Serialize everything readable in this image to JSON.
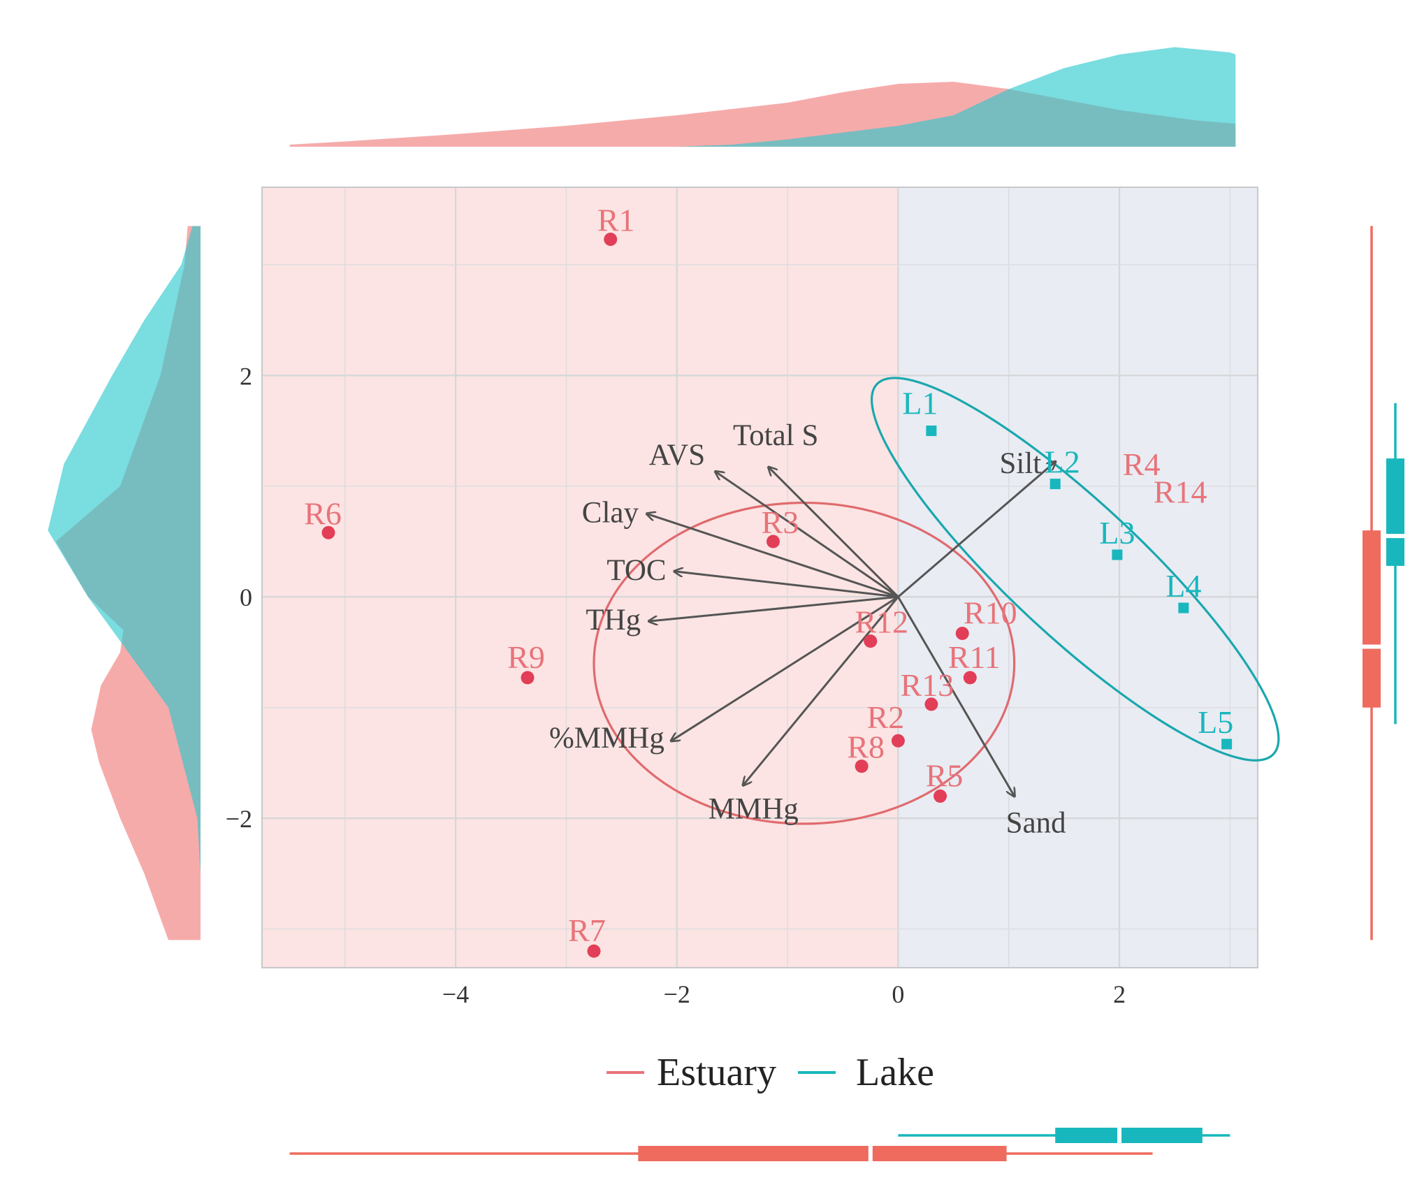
{
  "chart_data": {
    "type": "scatter",
    "title": "",
    "xlabel": "",
    "ylabel": "",
    "xlim": [
      -5.75,
      3.25
    ],
    "ylim": [
      -3.35,
      3.7
    ],
    "x_ticks": [
      {
        "value": -4,
        "label": "−4"
      },
      {
        "value": -2,
        "label": "−2"
      },
      {
        "value": 0,
        "label": "0"
      },
      {
        "value": 2,
        "label": "2"
      }
    ],
    "y_ticks": [
      {
        "value": 2,
        "label": "2"
      },
      {
        "value": 0,
        "label": "0"
      },
      {
        "value": -2,
        "label": "−2"
      }
    ],
    "grid": true,
    "legend_position": "bottom",
    "legend": [
      {
        "name": "Estuary",
        "color": "#E8737A"
      },
      {
        "name": "Lake",
        "color": "#17B7BD"
      }
    ],
    "series": [
      {
        "name": "Estuary",
        "color": "#E23E57",
        "label_color": "#E8737A",
        "marker": "circle",
        "points": [
          {
            "label": "R1",
            "x": -2.6,
            "y": 3.23
          },
          {
            "label": "R2",
            "x": 0.0,
            "y": -1.3
          },
          {
            "label": "R3",
            "x": -1.13,
            "y": 0.5
          },
          {
            "label": "R4",
            "x": 2.2,
            "y": 1.1,
            "label_only": true
          },
          {
            "label": "R5",
            "x": 0.38,
            "y": -1.8
          },
          {
            "label": "R6",
            "x": -5.15,
            "y": 0.58
          },
          {
            "label": "R7",
            "x": -2.75,
            "y": -3.2
          },
          {
            "label": "R8",
            "x": -0.33,
            "y": -1.53
          },
          {
            "label": "R9",
            "x": -3.35,
            "y": -0.73
          },
          {
            "label": "R10",
            "x": 0.58,
            "y": -0.33
          },
          {
            "label": "R11",
            "x": 0.65,
            "y": -0.73
          },
          {
            "label": "R12",
            "x": -0.25,
            "y": -0.4
          },
          {
            "label": "R13",
            "x": 0.3,
            "y": -0.97
          },
          {
            "label": "R14",
            "x": 2.55,
            "y": 0.85,
            "label_only": true
          }
        ]
      },
      {
        "name": "Lake",
        "color": "#17B7BD",
        "label_color": "#17B7BD",
        "marker": "square",
        "points": [
          {
            "label": "L1",
            "x": 0.3,
            "y": 1.5
          },
          {
            "label": "L2",
            "x": 1.42,
            "y": 1.02
          },
          {
            "label": "L3",
            "x": 1.98,
            "y": 0.38
          },
          {
            "label": "L4",
            "x": 2.58,
            "y": -0.1
          },
          {
            "label": "L5",
            "x": 2.97,
            "y": -1.33
          }
        ]
      }
    ],
    "loadings": [
      {
        "name": "Total S",
        "x": -1.17,
        "y": 1.17
      },
      {
        "name": "AVS",
        "x": -1.65,
        "y": 1.13
      },
      {
        "name": "Clay",
        "x": -2.27,
        "y": 0.75
      },
      {
        "name": "TOC",
        "x": -2.02,
        "y": 0.23
      },
      {
        "name": "THg",
        "x": -2.25,
        "y": -0.22
      },
      {
        "name": "%MMHg",
        "x": -2.05,
        "y": -1.3
      },
      {
        "name": "MMHg",
        "x": -1.4,
        "y": -1.7
      },
      {
        "name": "Silt",
        "x": 1.42,
        "y": 1.22
      },
      {
        "name": "Sand",
        "x": 1.05,
        "y": -1.8
      }
    ],
    "ellipses": [
      {
        "group": "Estuary",
        "cx": -0.85,
        "cy": -0.6,
        "rx": 1.9,
        "ry": 1.45,
        "angle_deg": 0
      },
      {
        "group": "Lake",
        "cx": 1.6,
        "cy": 0.25,
        "rx": 2.45,
        "ry": 0.6,
        "angle_deg": -43
      }
    ],
    "background_regions": [
      {
        "from_x": -5.75,
        "to_x": 0,
        "color": "#FBE4E3"
      },
      {
        "from_x": 0,
        "to_x": 3.25,
        "color": "#E9ECF3"
      }
    ],
    "marginal_density_x": {
      "Estuary": [
        [
          -5.5,
          0.02
        ],
        [
          -5.0,
          0.05
        ],
        [
          -4.0,
          0.12
        ],
        [
          -3.0,
          0.2
        ],
        [
          -2.0,
          0.3
        ],
        [
          -1.0,
          0.42
        ],
        [
          -0.5,
          0.52
        ],
        [
          0.0,
          0.6
        ],
        [
          0.5,
          0.62
        ],
        [
          1.0,
          0.55
        ],
        [
          2.0,
          0.35
        ],
        [
          2.7,
          0.25
        ],
        [
          3.05,
          0.22
        ]
      ],
      "Lake": [
        [
          -2.0,
          0.0
        ],
        [
          -1.5,
          0.02
        ],
        [
          -1.0,
          0.07
        ],
        [
          0.0,
          0.2
        ],
        [
          0.5,
          0.3
        ],
        [
          1.0,
          0.55
        ],
        [
          1.5,
          0.75
        ],
        [
          2.0,
          0.88
        ],
        [
          2.5,
          0.95
        ],
        [
          3.0,
          0.9
        ],
        [
          3.05,
          0.88
        ]
      ]
    },
    "marginal_density_y": {
      "Estuary": [
        [
          -3.1,
          0.2
        ],
        [
          -2.5,
          0.35
        ],
        [
          -2.0,
          0.5
        ],
        [
          -1.5,
          0.63
        ],
        [
          -1.2,
          0.68
        ],
        [
          -0.8,
          0.62
        ],
        [
          -0.5,
          0.5
        ],
        [
          -0.3,
          0.48
        ],
        [
          0.0,
          0.7
        ],
        [
          0.5,
          0.9
        ],
        [
          1.0,
          0.5
        ],
        [
          2.0,
          0.25
        ],
        [
          3.0,
          0.1
        ],
        [
          3.35,
          0.08
        ]
      ],
      "Lake": [
        [
          -2.5,
          0.0
        ],
        [
          -2.0,
          0.02
        ],
        [
          -1.0,
          0.2
        ],
        [
          0.0,
          0.7
        ],
        [
          0.6,
          0.95
        ],
        [
          1.2,
          0.85
        ],
        [
          2.0,
          0.55
        ],
        [
          2.5,
          0.35
        ],
        [
          3.0,
          0.12
        ],
        [
          3.35,
          0.05
        ]
      ]
    },
    "boxplot_x": {
      "Estuary": {
        "min": -5.5,
        "q1": -2.35,
        "median": -0.25,
        "q3": 0.98,
        "max": 2.3,
        "color": "#EE6B5E"
      },
      "Lake": {
        "min": 0.0,
        "q1": 1.42,
        "median": 2.0,
        "q3": 2.75,
        "max": 3.0,
        "color": "#17B7BD"
      }
    },
    "boxplot_y": {
      "Estuary": {
        "min": -3.1,
        "q1": -1.0,
        "median": -0.45,
        "q3": 0.6,
        "max": 3.35,
        "color": "#EE6B5E"
      },
      "Lake": {
        "min": -1.15,
        "q1": 0.28,
        "median": 0.55,
        "q3": 1.25,
        "max": 1.75,
        "color": "#17B7BD"
      }
    }
  }
}
